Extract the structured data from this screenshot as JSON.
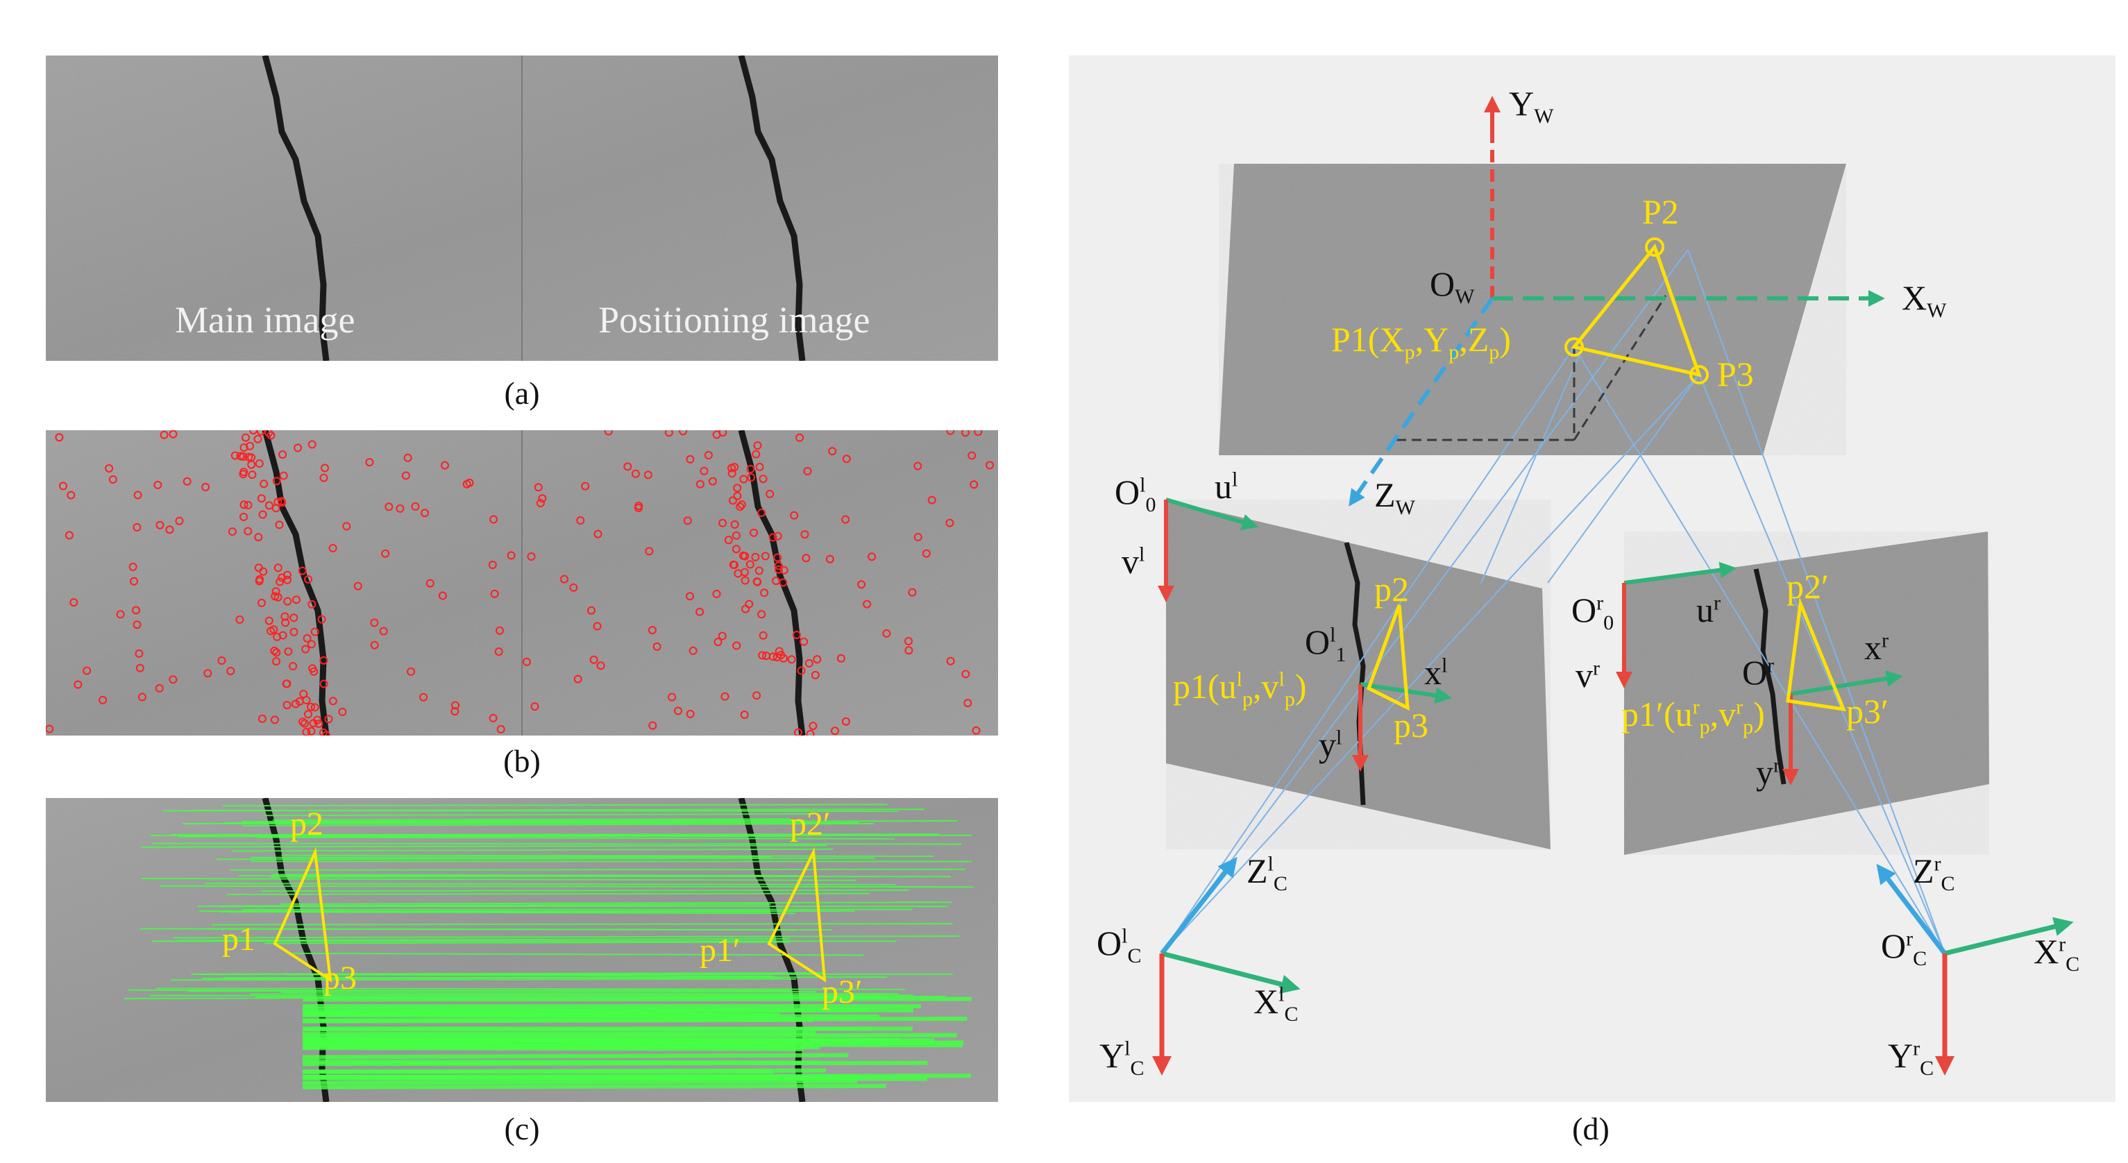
{
  "panels": {
    "a": {
      "caption": "(a)",
      "left_label": "Main image",
      "right_label": "Positioning image"
    },
    "b": {
      "caption": "(b)"
    },
    "c": {
      "caption": "(c)",
      "left_points": [
        "p1",
        "p2",
        "p3"
      ],
      "right_points": [
        "p1′",
        "p2′",
        "p3′"
      ]
    },
    "d": {
      "caption": "(d)",
      "world": {
        "yw": "Y",
        "yw_sub": "W",
        "xw": "X",
        "xw_sub": "W",
        "zw": "Z",
        "zw_sub": "W",
        "ow": "O",
        "ow_sub": "W",
        "P1": "P1(X",
        "P1_sub1": "p",
        "P1_mid1": ",Y",
        "P1_sub2": "p",
        "P1_mid2": ",Z",
        "P1_sub3": "p",
        "P1_end": ")",
        "P2": "P2",
        "P3": "P3"
      },
      "left_cam": {
        "o0": "O",
        "o0_sub": "0",
        "o0_sup": "l",
        "u": "u",
        "u_sup": "l",
        "v": "v",
        "v_sup": "l",
        "o1": "O",
        "o1_sub": "1",
        "o1_sup": "l",
        "x": "x",
        "x_sup": "l",
        "y": "y",
        "y_sup": "l",
        "p2": "p2",
        "p3": "p3",
        "p1": "p1(u",
        "p1_sub1": "p",
        "p1_sup1": "l",
        "p1_mid": ",v",
        "p1_sub2": "p",
        "p1_sup2": "l",
        "p1_end": ")",
        "zc": "Z",
        "zc_sub": "C",
        "zc_sup": "l",
        "oc": "O",
        "oc_sub": "C",
        "oc_sup": "l",
        "xc": "X",
        "xc_sub": "C",
        "xc_sup": "l",
        "yc": "Y",
        "yc_sub": "C",
        "yc_sup": "l"
      },
      "right_cam": {
        "o0": "O",
        "o0_sub": "0",
        "o0_sup": "r",
        "u": "u",
        "u_sup": "r",
        "v": "v",
        "v_sup": "r",
        "o1": "O",
        "o1_sup": "r",
        "x": "x",
        "x_sup": "r",
        "y": "y",
        "y_sup": "r",
        "p2": "p2′",
        "p3": "p3′",
        "p1": "p1′(u",
        "p1_sub1": "p",
        "p1_sup1": "r",
        "p1_mid": ",v",
        "p1_sub2": "p",
        "p1_sup2": "r",
        "p1_end": ")",
        "zc": "Z",
        "zc_sub": "C",
        "zc_sup": "r",
        "oc": "O",
        "oc_sub": "C",
        "oc_sup": "r",
        "xc": "X",
        "xc_sub": "C",
        "xc_sup": "r",
        "yc": "Y",
        "yc_sub": "C",
        "yc_sup": "r"
      }
    }
  },
  "colors": {
    "annotation_yellow": "#ffe600",
    "match_green": "#44ff44",
    "feature_red": "#ff2020",
    "axis_red": "#e8463c",
    "axis_green": "#2fb37a",
    "axis_blue": "#3aa6e0",
    "ray_blue": "#7fb3e6"
  }
}
